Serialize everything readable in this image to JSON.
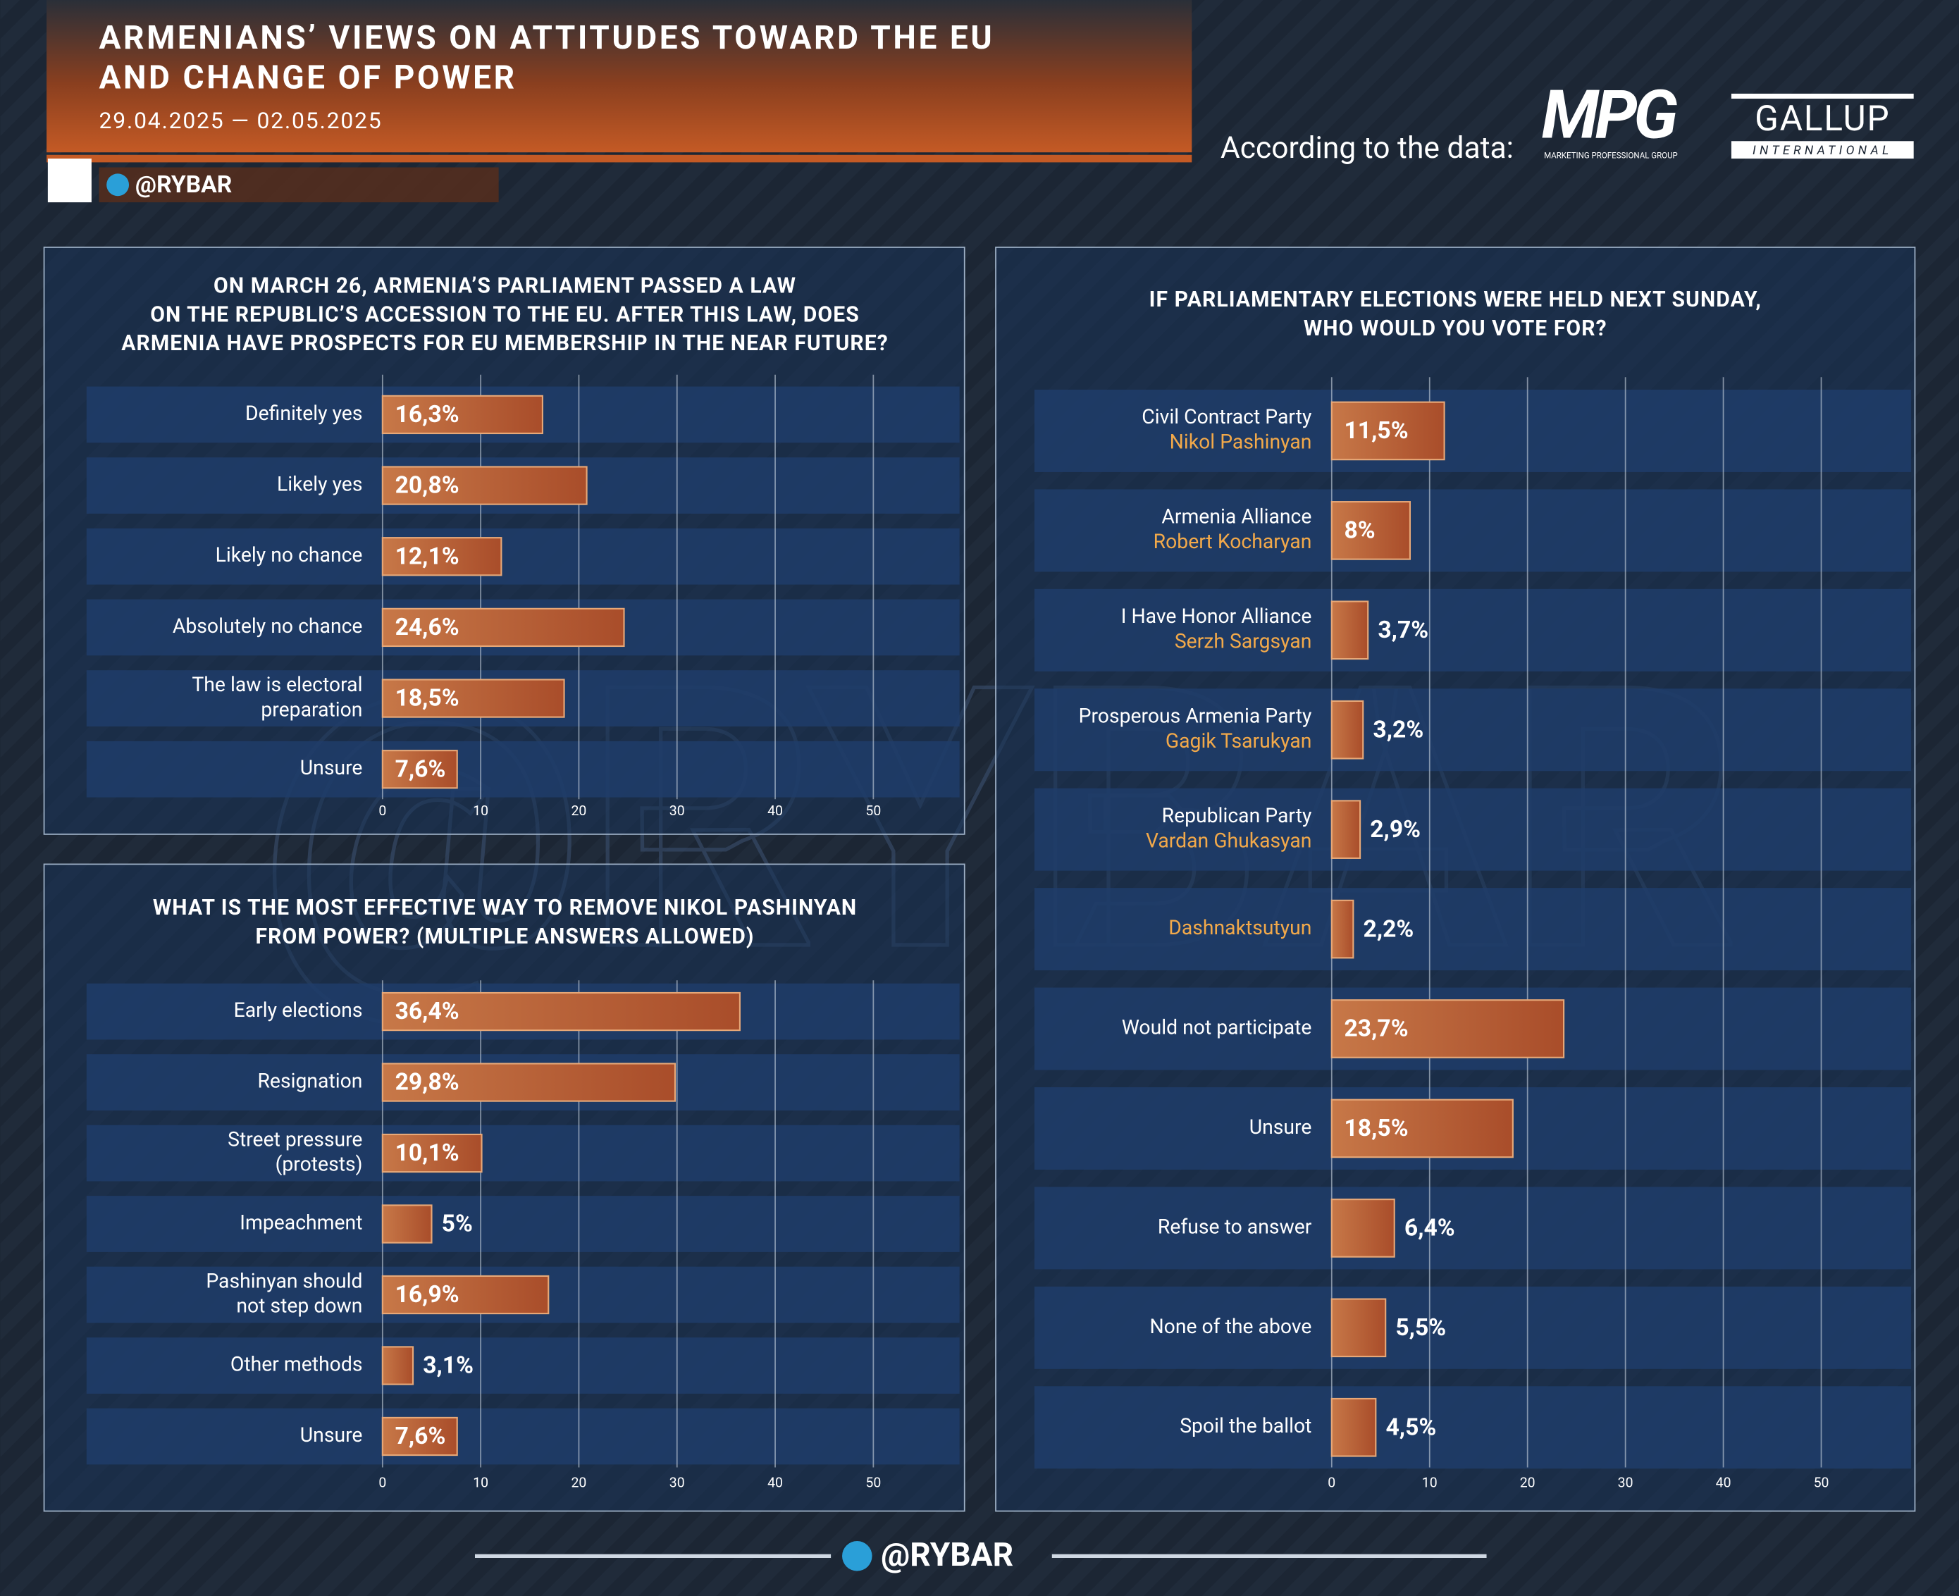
{
  "header": {
    "title": [
      "ARMENIANS’ VIEWS ON ATTITUDES TOWARD THE EU",
      "AND CHANGE OF POWER"
    ],
    "date": "29.04.2025 — 02.05.2025",
    "handle": "@RYBAR",
    "source_label": "According to the data:",
    "mpg": "MPG",
    "mpg_sub": "MARKETING PROFESSIONAL GROUP",
    "gallup": "GALLUP",
    "gallup_sub": "INTERNATIONAL"
  },
  "chart_data": [
    {
      "type": "bar",
      "title": [
        "ON MARCH 26, ARMENIA’S PARLIAMENT PASSED A LAW",
        "ON THE REPUBLIC’S ACCESSION TO THE EU. AFTER THIS LAW, DOES",
        "ARMENIA HAVE PROSPECTS FOR EU MEMBERSHIP IN THE NEAR FUTURE?"
      ],
      "categories": [
        [
          "Definitely yes"
        ],
        [
          "Likely yes"
        ],
        [
          "Likely no chance"
        ],
        [
          "Absolutely no chance"
        ],
        [
          "The law is electoral",
          "preparation"
        ],
        [
          "Unsure"
        ]
      ],
      "values": [
        16.3,
        20.8,
        12.1,
        24.6,
        18.5,
        7.6
      ],
      "value_labels": [
        "16,3%",
        "20,8%",
        "12,1%",
        "24,6%",
        "18,5%",
        "7,6%"
      ],
      "color": "#b65a32",
      "xlim": [
        0,
        50
      ],
      "xticks": [
        0,
        10,
        20,
        30,
        40,
        50
      ],
      "grid": true
    },
    {
      "type": "bar",
      "title": [
        "WHAT IS THE MOST EFFECTIVE WAY TO REMOVE NIKOL PASHINYAN",
        "FROM POWER? (MULTIPLE ANSWERS ALLOWED)"
      ],
      "categories": [
        [
          "Early elections"
        ],
        [
          "Resignation"
        ],
        [
          "Street pressure",
          "(protests)"
        ],
        [
          "Impeachment"
        ],
        [
          "Pashinyan should",
          "not step down"
        ],
        [
          "Other methods"
        ],
        [
          "Unsure"
        ]
      ],
      "values": [
        36.4,
        29.8,
        10.1,
        5,
        16.9,
        3.1,
        7.6
      ],
      "value_labels": [
        "36,4%",
        "29,8%",
        "10,1%",
        "5%",
        "16,9%",
        "3,1%",
        "7,6%"
      ],
      "color": "#b65a32",
      "xlim": [
        0,
        50
      ],
      "xticks": [
        0,
        10,
        20,
        30,
        40,
        50
      ],
      "grid": true
    },
    {
      "type": "bar",
      "title": [
        "IF PARLIAMENTARY ELECTIONS WERE HELD NEXT SUNDAY,",
        "WHO WOULD YOU VOTE FOR?"
      ],
      "categories": [
        "Civil Contract Party",
        "Armenia Alliance",
        "I Have Honor Alliance",
        "Prosperous Armenia Party",
        "Republican Party",
        null,
        "Would not participate",
        "Unsure",
        "Refuse to answer",
        "None of the above",
        "Spoil the ballot"
      ],
      "leaders": [
        "Nikol Pashinyan",
        "Robert Kocharyan",
        "Serzh Sargsyan",
        "Gagik Tsarukyan",
        "Vardan Ghukasyan",
        "Dashnaktsutyun",
        null,
        null,
        null,
        null,
        null
      ],
      "values": [
        11.5,
        8,
        3.7,
        3.2,
        2.9,
        2.2,
        23.7,
        18.5,
        6.4,
        5.5,
        4.5
      ],
      "value_labels": [
        "11,5%",
        "8%",
        "3,7%",
        "3,2%",
        "2,9%",
        "2,2%",
        "23,7%",
        "18,5%",
        "6,4%",
        "5,5%",
        "4,5%"
      ],
      "color": "#b65a32",
      "xlim": [
        0,
        50
      ],
      "xticks": [
        0,
        10,
        20,
        30,
        40,
        50
      ],
      "grid": true
    }
  ],
  "footer": {
    "handle": "@RYBAR"
  }
}
